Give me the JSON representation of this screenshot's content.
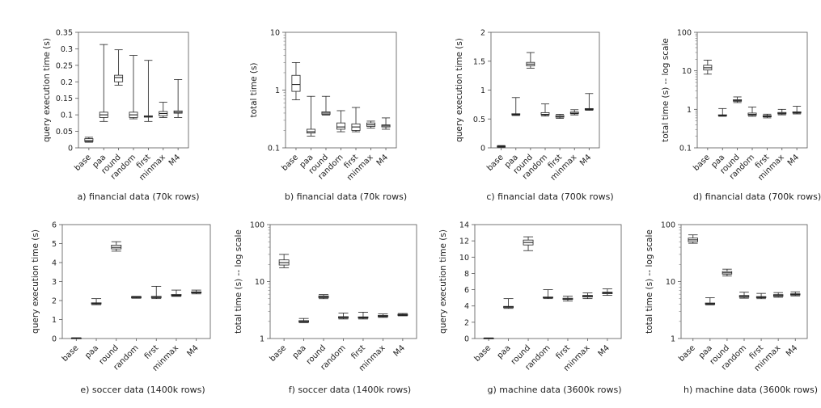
{
  "chart_data": [
    {
      "type": "boxplot",
      "caption": "a) financial data (70k rows)",
      "ylabel": "query execution time (s)",
      "scale": "linear",
      "ylim": [
        0,
        0.35
      ],
      "yticks": [
        "0",
        "0.05",
        "0.1",
        "0.15",
        "0.2",
        "0.25",
        "0.3",
        "0.35"
      ],
      "categories": [
        "base",
        "paa",
        "round",
        "random",
        "first",
        "minmax",
        "M4"
      ],
      "boxes": [
        {
          "min": 0.017,
          "q1": 0.019,
          "median": 0.022,
          "q3": 0.028,
          "max": 0.032
        },
        {
          "min": 0.08,
          "q1": 0.092,
          "median": 0.1,
          "q3": 0.108,
          "max": 0.313
        },
        {
          "min": 0.19,
          "q1": 0.2,
          "median": 0.213,
          "q3": 0.22,
          "max": 0.297
        },
        {
          "min": 0.088,
          "q1": 0.092,
          "median": 0.1,
          "q3": 0.108,
          "max": 0.28
        },
        {
          "min": 0.08,
          "q1": 0.093,
          "median": 0.095,
          "q3": 0.097,
          "max": 0.265
        },
        {
          "min": 0.092,
          "q1": 0.097,
          "median": 0.104,
          "q3": 0.11,
          "max": 0.138
        },
        {
          "min": 0.092,
          "q1": 0.105,
          "median": 0.108,
          "q3": 0.112,
          "max": 0.207
        }
      ]
    },
    {
      "type": "boxplot",
      "caption": "b) financial data (70k rows)",
      "ylabel": "total time (s)",
      "scale": "log",
      "ylim": [
        0.1,
        10
      ],
      "yticks": [
        "0.1",
        "1",
        "10"
      ],
      "categories": [
        "base",
        "paa",
        "round",
        "random",
        "first",
        "minmax",
        "M4"
      ],
      "boxes": [
        {
          "min": 0.68,
          "q1": 0.95,
          "median": 1.25,
          "q3": 1.8,
          "max": 3.0
        },
        {
          "min": 0.16,
          "q1": 0.18,
          "median": 0.19,
          "q3": 0.21,
          "max": 0.78
        },
        {
          "min": 0.37,
          "q1": 0.38,
          "median": 0.4,
          "q3": 0.42,
          "max": 0.78
        },
        {
          "min": 0.19,
          "q1": 0.21,
          "median": 0.23,
          "q3": 0.27,
          "max": 0.44
        },
        {
          "min": 0.19,
          "q1": 0.2,
          "median": 0.23,
          "q3": 0.26,
          "max": 0.5
        },
        {
          "min": 0.22,
          "q1": 0.235,
          "median": 0.25,
          "q3": 0.27,
          "max": 0.29
        },
        {
          "min": 0.21,
          "q1": 0.23,
          "median": 0.24,
          "q3": 0.25,
          "max": 0.33
        }
      ]
    },
    {
      "type": "boxplot",
      "caption": "c) financial data (700k rows)",
      "ylabel": "query execution time (s)",
      "scale": "linear",
      "ylim": [
        0,
        2
      ],
      "yticks": [
        "0",
        "0.5",
        "1",
        "1.5",
        "2"
      ],
      "categories": [
        "base",
        "paa",
        "round",
        "random",
        "first",
        "minmax",
        "M4"
      ],
      "boxes": [
        {
          "min": 0.01,
          "q1": 0.015,
          "median": 0.02,
          "q3": 0.03,
          "max": 0.04
        },
        {
          "min": 0.56,
          "q1": 0.57,
          "median": 0.58,
          "q3": 0.59,
          "max": 0.87
        },
        {
          "min": 1.38,
          "q1": 1.42,
          "median": 1.45,
          "q3": 1.48,
          "max": 1.65
        },
        {
          "min": 0.55,
          "q1": 0.57,
          "median": 0.58,
          "q3": 0.61,
          "max": 0.76
        },
        {
          "min": 0.51,
          "q1": 0.53,
          "median": 0.54,
          "q3": 0.56,
          "max": 0.58
        },
        {
          "min": 0.57,
          "q1": 0.59,
          "median": 0.6,
          "q3": 0.62,
          "max": 0.66
        },
        {
          "min": 0.65,
          "q1": 0.66,
          "median": 0.67,
          "q3": 0.68,
          "max": 0.94
        }
      ]
    },
    {
      "type": "boxplot",
      "caption": "d) financial data (700k rows)",
      "ylabel": "total time (s) -- log scale",
      "scale": "log",
      "ylim": [
        0.1,
        100
      ],
      "yticks": [
        "0.1",
        "1",
        "10",
        "100"
      ],
      "categories": [
        "base",
        "paa",
        "round",
        "random",
        "first",
        "minmax",
        "M4"
      ],
      "boxes": [
        {
          "min": 8.2,
          "q1": 10.5,
          "median": 12.0,
          "q3": 14.0,
          "max": 19.0
        },
        {
          "min": 0.66,
          "q1": 0.68,
          "median": 0.7,
          "q3": 0.72,
          "max": 1.05
        },
        {
          "min": 1.5,
          "q1": 1.62,
          "median": 1.7,
          "q3": 1.78,
          "max": 2.1
        },
        {
          "min": 0.66,
          "q1": 0.7,
          "median": 0.74,
          "q3": 0.8,
          "max": 1.15
        },
        {
          "min": 0.6,
          "q1": 0.64,
          "median": 0.66,
          "q3": 0.69,
          "max": 0.75
        },
        {
          "min": 0.72,
          "q1": 0.76,
          "median": 0.79,
          "q3": 0.83,
          "max": 1.0
        },
        {
          "min": 0.76,
          "q1": 0.8,
          "median": 0.83,
          "q3": 0.86,
          "max": 1.2
        }
      ]
    },
    {
      "type": "boxplot",
      "caption": "e) soccer data (1400k rows)",
      "ylabel": "query execution time (s)",
      "scale": "linear",
      "ylim": [
        0,
        6
      ],
      "yticks": [
        "0",
        "1",
        "2",
        "3",
        "4",
        "5",
        "6"
      ],
      "categories": [
        "base",
        "paa",
        "round",
        "random",
        "first",
        "minmax",
        "M4"
      ],
      "boxes": [
        {
          "min": 0.01,
          "q1": 0.015,
          "median": 0.02,
          "q3": 0.03,
          "max": 0.04
        },
        {
          "min": 1.78,
          "q1": 1.82,
          "median": 1.85,
          "q3": 1.88,
          "max": 2.1
        },
        {
          "min": 4.6,
          "q1": 4.72,
          "median": 4.8,
          "q3": 4.92,
          "max": 5.1
        },
        {
          "min": 2.12,
          "q1": 2.15,
          "median": 2.18,
          "q3": 2.2,
          "max": 2.22
        },
        {
          "min": 2.1,
          "q1": 2.15,
          "median": 2.18,
          "q3": 2.22,
          "max": 2.75
        },
        {
          "min": 2.22,
          "q1": 2.25,
          "median": 2.28,
          "q3": 2.32,
          "max": 2.55
        },
        {
          "min": 2.35,
          "q1": 2.4,
          "median": 2.42,
          "q3": 2.46,
          "max": 2.55
        }
      ]
    },
    {
      "type": "boxplot",
      "caption": "f) soccer data (1400k rows)",
      "ylabel": "total time (s) -- log scale",
      "scale": "log",
      "ylim": [
        1,
        100
      ],
      "yticks": [
        "1",
        "10",
        "100"
      ],
      "categories": [
        "base",
        "paa",
        "round",
        "random",
        "first",
        "minmax",
        "M4"
      ],
      "boxes": [
        {
          "min": 17.5,
          "q1": 19.5,
          "median": 21.5,
          "q3": 24.0,
          "max": 30.0
        },
        {
          "min": 1.9,
          "q1": 1.95,
          "median": 2.0,
          "q3": 2.06,
          "max": 2.25
        },
        {
          "min": 5.0,
          "q1": 5.2,
          "median": 5.4,
          "q3": 5.6,
          "max": 5.9
        },
        {
          "min": 2.2,
          "q1": 2.28,
          "median": 2.35,
          "q3": 2.42,
          "max": 2.8
        },
        {
          "min": 2.2,
          "q1": 2.28,
          "median": 2.33,
          "q3": 2.4,
          "max": 2.9
        },
        {
          "min": 2.35,
          "q1": 2.42,
          "median": 2.48,
          "q3": 2.54,
          "max": 2.7
        },
        {
          "min": 2.5,
          "q1": 2.55,
          "median": 2.6,
          "q3": 2.66,
          "max": 2.75
        }
      ]
    },
    {
      "type": "boxplot",
      "caption": "g) machine data (3600k rows)",
      "ylabel": "query execution time (s)",
      "scale": "linear",
      "ylim": [
        0,
        14
      ],
      "yticks": [
        "0",
        "2",
        "4",
        "6",
        "8",
        "10",
        "12",
        "14"
      ],
      "categories": [
        "base",
        "paa",
        "round",
        "random",
        "first",
        "minmax",
        "M4"
      ],
      "boxes": [
        {
          "min": 0.01,
          "q1": 0.02,
          "median": 0.04,
          "q3": 0.06,
          "max": 0.08
        },
        {
          "min": 3.7,
          "q1": 3.8,
          "median": 3.9,
          "q3": 3.95,
          "max": 4.9
        },
        {
          "min": 10.8,
          "q1": 11.5,
          "median": 11.8,
          "q3": 12.1,
          "max": 12.5
        },
        {
          "min": 4.9,
          "q1": 5.0,
          "median": 5.05,
          "q3": 5.1,
          "max": 6.0
        },
        {
          "min": 4.6,
          "q1": 4.8,
          "median": 4.85,
          "q3": 4.95,
          "max": 5.2
        },
        {
          "min": 4.9,
          "q1": 5.1,
          "median": 5.2,
          "q3": 5.3,
          "max": 5.6
        },
        {
          "min": 5.3,
          "q1": 5.5,
          "median": 5.6,
          "q3": 5.7,
          "max": 6.1
        }
      ]
    },
    {
      "type": "boxplot",
      "caption": "h) machine data (3600k rows)",
      "ylabel": "total time (s) -- log scale",
      "scale": "log",
      "ylim": [
        1,
        100
      ],
      "yticks": [
        "1",
        "10",
        "100"
      ],
      "categories": [
        "base",
        "paa",
        "round",
        "random",
        "first",
        "minmax",
        "M4"
      ],
      "boxes": [
        {
          "min": 47.0,
          "q1": 50.0,
          "median": 54.0,
          "q3": 58.0,
          "max": 66.0
        },
        {
          "min": 3.9,
          "q1": 4.0,
          "median": 4.1,
          "q3": 4.2,
          "max": 5.2
        },
        {
          "min": 12.5,
          "q1": 13.5,
          "median": 14.2,
          "q3": 15.0,
          "max": 16.5
        },
        {
          "min": 5.1,
          "q1": 5.3,
          "median": 5.5,
          "q3": 5.7,
          "max": 6.5
        },
        {
          "min": 5.0,
          "q1": 5.2,
          "median": 5.3,
          "q3": 5.45,
          "max": 6.2
        },
        {
          "min": 5.3,
          "q1": 5.5,
          "median": 5.7,
          "q3": 5.9,
          "max": 6.4
        },
        {
          "min": 5.6,
          "q1": 5.8,
          "median": 5.95,
          "q3": 6.1,
          "max": 6.6
        }
      ]
    }
  ]
}
